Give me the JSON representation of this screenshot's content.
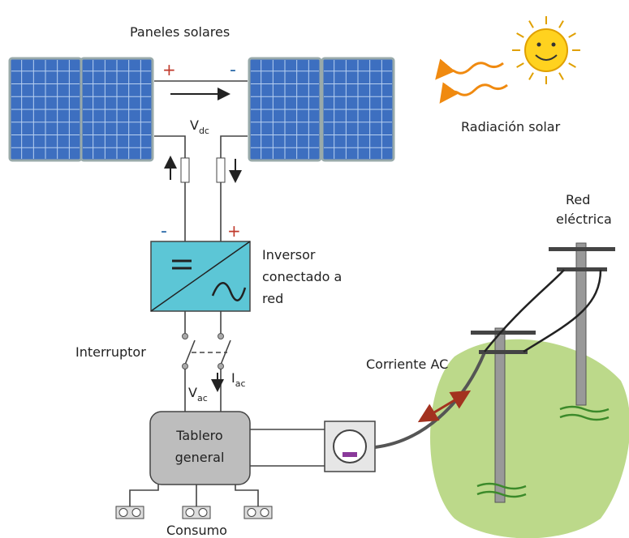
{
  "labels": {
    "panels": "Paneles solares",
    "panel_plus": "+",
    "panel_minus": "-",
    "vdc": {
      "main": "V",
      "sub": "dc"
    },
    "radiation": "Radiación solar",
    "grid": [
      "Red",
      "eléctrica"
    ],
    "inv_minus": "-",
    "inv_plus": "+",
    "inverter": [
      "Inversor",
      "conectado a",
      "red"
    ],
    "switch": "Interruptor",
    "ac_current": "Corriente AC",
    "vac": {
      "main": "V",
      "sub": "ac"
    },
    "iac": {
      "main": "I",
      "sub": "ac"
    },
    "board": [
      "Tablero",
      "general"
    ],
    "consumption": "Consumo"
  }
}
